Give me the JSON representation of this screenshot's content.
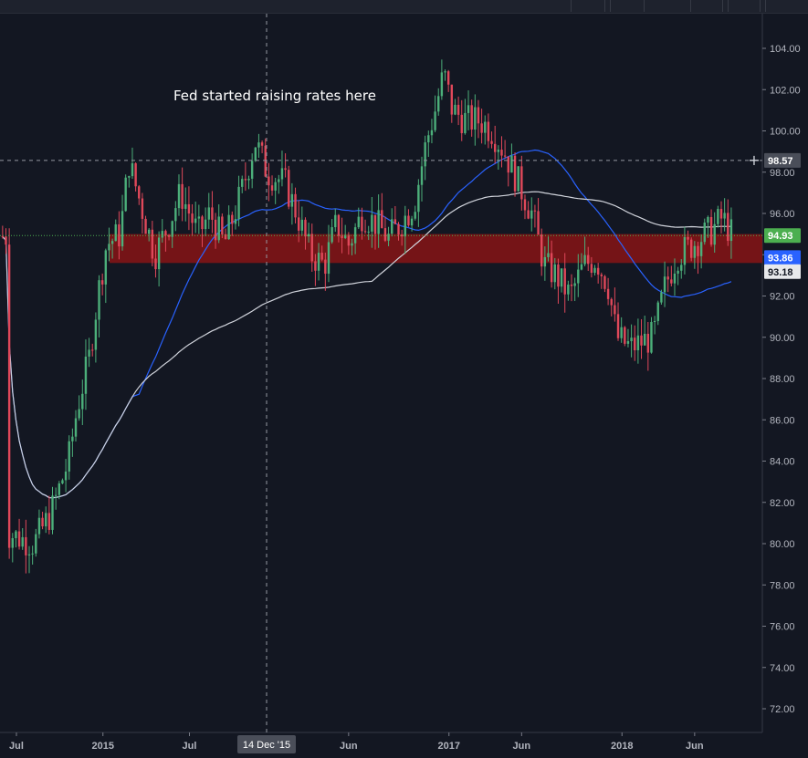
{
  "chart_data": {
    "type": "candlestick",
    "annotation": "Fed started raising rates here",
    "crosshair_date_label": "14 Dec '15",
    "crosshair_price_label": "98.57",
    "y_ticks": [
      "104.00",
      "102.00",
      "100.00",
      "98.00",
      "96.00",
      "94.00",
      "92.00",
      "90.00",
      "88.00",
      "86.00",
      "84.00",
      "82.00",
      "80.00",
      "78.00",
      "76.00",
      "74.00",
      "72.00"
    ],
    "ylim": [
      71,
      105
    ],
    "x_labels": [
      "Jul",
      "2015",
      "Jul",
      "Jun",
      "2017",
      "Jun",
      "2018",
      "Jun"
    ],
    "x_label_values": [
      2014.5,
      2015.0,
      2015.5,
      2016.42,
      2017.0,
      2017.42,
      2018.0,
      2018.42
    ],
    "price_labels": {
      "last": {
        "value": "94.93",
        "color": "#4caf50"
      },
      "ma_fast": {
        "value": "93.86",
        "color": "#2962ff"
      },
      "ma_slow": {
        "value": "93.18",
        "color": "#d1d4dc"
      }
    },
    "zone": {
      "from": 93.6,
      "to": 95.0,
      "color": "#7a1417"
    },
    "ohlc_anchor_closes": [
      [
        2014.45,
        80.5
      ],
      [
        2014.6,
        80.0
      ],
      [
        2014.7,
        81.5
      ],
      [
        2014.8,
        84.0
      ],
      [
        2014.85,
        86.5
      ],
      [
        2014.92,
        89.0
      ],
      [
        2014.97,
        92.0
      ],
      [
        2015.02,
        94.5
      ],
      [
        2015.1,
        95.0
      ],
      [
        2015.15,
        98.5
      ],
      [
        2015.2,
        97.0
      ],
      [
        2015.3,
        94.0
      ],
      [
        2015.38,
        95.5
      ],
      [
        2015.45,
        97.0
      ],
      [
        2015.55,
        95.0
      ],
      [
        2015.62,
        96.0
      ],
      [
        2015.7,
        94.5
      ],
      [
        2015.8,
        97.0
      ],
      [
        2015.88,
        99.5
      ],
      [
        2015.95,
        98.0
      ],
      [
        2016.05,
        97.5
      ],
      [
        2016.12,
        96.0
      ],
      [
        2016.2,
        94.0
      ],
      [
        2016.28,
        93.5
      ],
      [
        2016.35,
        95.5
      ],
      [
        2016.42,
        94.5
      ],
      [
        2016.5,
        96.0
      ],
      [
        2016.58,
        95.5
      ],
      [
        2016.65,
        94.8
      ],
      [
        2016.72,
        95.5
      ],
      [
        2016.8,
        96.5
      ],
      [
        2016.87,
        99.5
      ],
      [
        2016.92,
        101.0
      ],
      [
        2016.97,
        102.8
      ],
      [
        2017.02,
        101.0
      ],
      [
        2017.1,
        100.5
      ],
      [
        2017.18,
        100.5
      ],
      [
        2017.25,
        100.0
      ],
      [
        2017.32,
        99.0
      ],
      [
        2017.4,
        97.5
      ],
      [
        2017.48,
        96.0
      ],
      [
        2017.55,
        93.5
      ],
      [
        2017.62,
        93.0
      ],
      [
        2017.7,
        92.0
      ],
      [
        2017.78,
        93.5
      ],
      [
        2017.85,
        93.8
      ],
      [
        2017.92,
        92.5
      ],
      [
        2017.97,
        90.0
      ],
      [
        2018.05,
        89.5
      ],
      [
        2018.12,
        89.8
      ],
      [
        2018.18,
        90.0
      ],
      [
        2018.25,
        92.5
      ],
      [
        2018.32,
        94.0
      ],
      [
        2018.38,
        94.3
      ],
      [
        2018.45,
        94.8
      ],
      [
        2018.52,
        95.2
      ],
      [
        2018.58,
        95.8
      ],
      [
        2018.64,
        94.9
      ]
    ]
  }
}
